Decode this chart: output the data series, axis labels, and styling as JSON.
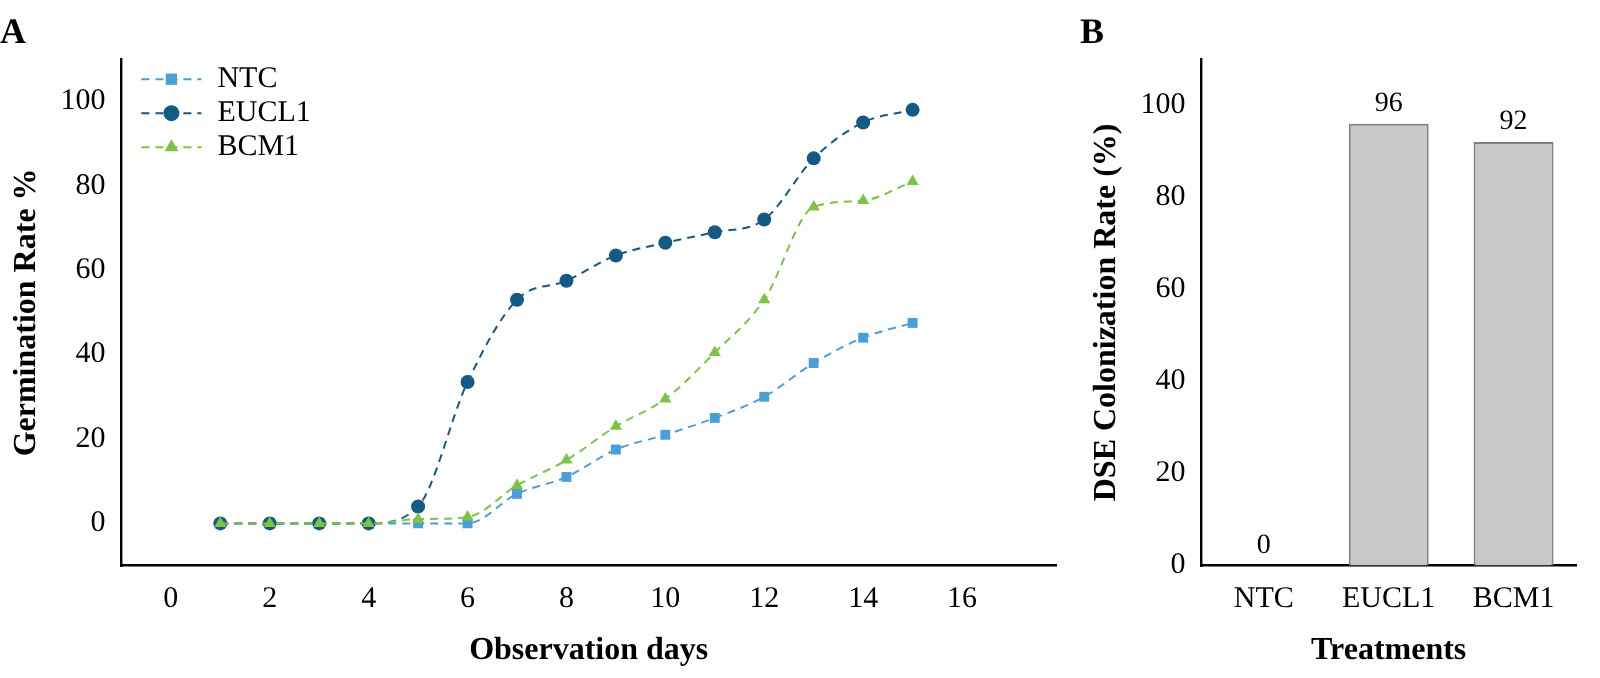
{
  "chart_data": [
    {
      "type": "line",
      "title": "A",
      "xlabel": "Observation days",
      "ylabel": "Germination Rate %",
      "x": [
        1,
        2,
        3,
        4,
        5,
        6,
        7,
        8,
        9,
        10,
        11,
        12,
        13,
        14,
        15
      ],
      "series": [
        {
          "name": "NTC",
          "color": "#4a9fd6",
          "marker": "square",
          "values": [
            0,
            0,
            0,
            0,
            0,
            0,
            7,
            11,
            17.5,
            21,
            25,
            30,
            38,
            44,
            47.5
          ]
        },
        {
          "name": "EUCL1",
          "color": "#145a85",
          "marker": "circle",
          "values": [
            0,
            0,
            0,
            0,
            4,
            33.5,
            53,
            57.5,
            63.5,
            66.5,
            69,
            72,
            86.5,
            95,
            98
          ]
        },
        {
          "name": "BCM1",
          "color": "#7cc443",
          "marker": "triangle",
          "values": [
            0,
            0,
            0,
            0,
            1,
            1.5,
            9,
            15,
            23,
            29.5,
            40.5,
            53,
            75,
            76.5,
            81
          ]
        }
      ],
      "line_style": "dashed",
      "legend": "top left",
      "grid": false,
      "xlim": [
        -1,
        17.9
      ],
      "xticks": [
        0,
        2,
        4,
        6,
        8,
        10,
        12,
        14,
        16
      ],
      "ylim": [
        -10,
        110
      ],
      "yticks": [
        0,
        20,
        40,
        60,
        80,
        100
      ]
    },
    {
      "type": "bar",
      "title": "B",
      "xlabel": "Treatments",
      "ylabel": "DSE Colonization Rate (%)",
      "categories": [
        "NTC",
        "EUCL1",
        "BCM1"
      ],
      "values": [
        0,
        96,
        92
      ],
      "color": "#c8c8c8",
      "data_labels": true,
      "grid": false,
      "legend": false,
      "ylim": [
        0,
        110
      ],
      "yticks": [
        0,
        20,
        40,
        60,
        80,
        100
      ]
    }
  ]
}
